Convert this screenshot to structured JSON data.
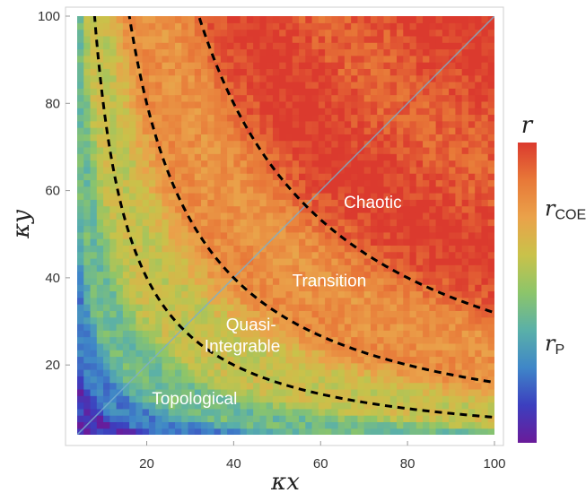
{
  "chart_data": {
    "type": "heatmap",
    "title": "",
    "xlabel": "κx",
    "ylabel": "κy",
    "xlim": [
      4,
      100
    ],
    "ylim": [
      4,
      100
    ],
    "xticks": [
      20,
      40,
      60,
      80,
      100
    ],
    "yticks": [
      20,
      40,
      60,
      80,
      100
    ],
    "grid": false,
    "value_description": "heat map of r over (κx, κy); r increases with the product κx·κy",
    "colorbar": {
      "symbol": "r",
      "ticks": [
        {
          "label": "r",
          "sub": "COE",
          "value": 0.53
        },
        {
          "label": "r",
          "sub": "P",
          "value": 0.386
        }
      ],
      "range": [
        0.28,
        0.6
      ],
      "colormap": [
        "#6a1b9a",
        "#3c3fbf",
        "#3f86c8",
        "#5ab0a8",
        "#8cc56a",
        "#c9c24a",
        "#eaa24a",
        "#e87838",
        "#db3a2e"
      ]
    },
    "boundary_curves": [
      {
        "style": "dashed",
        "equation": "κx·κy = 800"
      },
      {
        "style": "dashed",
        "equation": "κx·κy = 1600"
      },
      {
        "style": "dashed",
        "equation": "κx·κy = 3200"
      }
    ],
    "diagonal_line": {
      "from": [
        4,
        4
      ],
      "to": [
        100,
        100
      ]
    },
    "region_labels": [
      {
        "text": "Topological",
        "x": 31,
        "y": 11
      },
      {
        "text": "Quasi-",
        "x": 44,
        "y": 28
      },
      {
        "text": "Integrable",
        "x": 42,
        "y": 23
      },
      {
        "text": "Transition",
        "x": 62,
        "y": 38
      },
      {
        "text": "Chaotic",
        "x": 72,
        "y": 56
      }
    ]
  }
}
